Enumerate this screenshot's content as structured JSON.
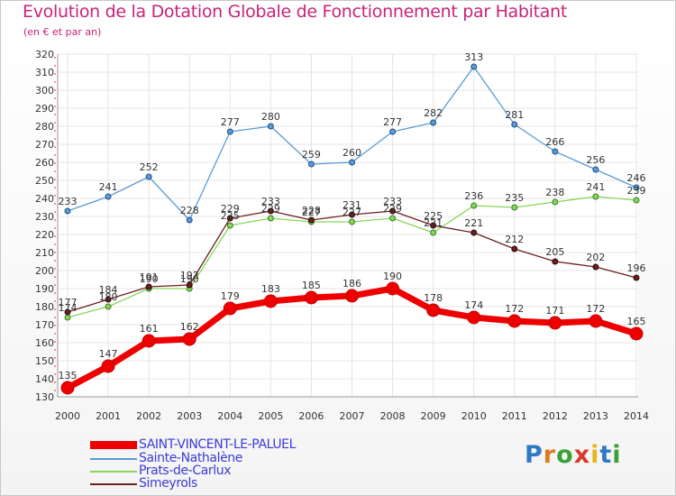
{
  "title": "Evolution de la Dotation Globale de Fonctionnement par Habitant",
  "subtitle": "(en € et par an)",
  "logo": {
    "p": "P",
    "r": "r",
    "o": "o",
    "x": "x",
    "i1": "i",
    "t": "t",
    "i2": "i"
  },
  "chart_data": {
    "type": "line",
    "title": "Evolution de la Dotation Globale de Fonctionnement par Habitant",
    "subtitle": "(en € et par an)",
    "xlabel": "",
    "ylabel": "",
    "x": [
      "2000",
      "2001",
      "2002",
      "2003",
      "2004",
      "2005",
      "2006",
      "2007",
      "2008",
      "2009",
      "2010",
      "2011",
      "2012",
      "2013",
      "2014"
    ],
    "ylim": [
      130,
      320
    ],
    "yticks": [
      130,
      140,
      150,
      160,
      170,
      180,
      190,
      200,
      210,
      220,
      230,
      240,
      250,
      260,
      270,
      280,
      290,
      300,
      310,
      320
    ],
    "grid": true,
    "legend_position": "bottom-left",
    "series": [
      {
        "name": "Sainte-Nathalène",
        "color": "#5b9bd5",
        "values": [
          233,
          241,
          252,
          228,
          277,
          280,
          259,
          260,
          277,
          282,
          313,
          281,
          266,
          256,
          246
        ]
      },
      {
        "name": "Prats-de-Carlux",
        "color": "#86d65a",
        "values": [
          174,
          180,
          190,
          190,
          225,
          229,
          227,
          227,
          229,
          221,
          236,
          235,
          238,
          241,
          239
        ]
      },
      {
        "name": "Simeyrols",
        "color": "#6b1f1f",
        "values": [
          177,
          184,
          191,
          192,
          229,
          233,
          228,
          231,
          233,
          225,
          221,
          212,
          205,
          202,
          196
        ]
      },
      {
        "name": "SAINT-VINCENT-LE-PALUEL",
        "color": "#ee0000",
        "values": [
          135,
          147,
          161,
          162,
          179,
          183,
          185,
          186,
          190,
          178,
          174,
          172,
          171,
          172,
          165
        ]
      }
    ],
    "legend_order": [
      "SAINT-VINCENT-LE-PALUEL",
      "Sainte-Nathalène",
      "Prats-de-Carlux",
      "Simeyrols"
    ]
  }
}
